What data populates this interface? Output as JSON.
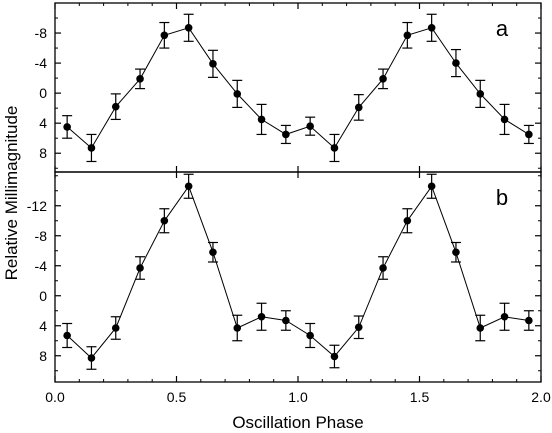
{
  "chart_data": {
    "type": "scatter",
    "xlabel": "Oscillation Phase",
    "ylabel": "Relative Millimagnitude",
    "xlim": [
      0.0,
      2.0
    ],
    "xticks": [
      "0.0",
      "0.5",
      "1.0",
      "1.5",
      "2.0"
    ],
    "x": [
      0.05,
      0.15,
      0.25,
      0.35,
      0.45,
      0.55,
      0.65,
      0.75,
      0.85,
      0.95,
      1.05,
      1.15,
      1.25,
      1.35,
      1.45,
      1.55,
      1.65,
      1.75,
      1.85,
      1.95
    ],
    "y_inverted": true,
    "connected": true,
    "grid": false,
    "panels": [
      {
        "label": "a",
        "ylim": [
          10.5,
          -12
        ],
        "yticks": [
          "-8",
          "-4",
          "0",
          "4",
          "8"
        ],
        "ytick_values": [
          -8,
          -4,
          0,
          4,
          8
        ],
        "y": [
          4.5,
          7.3,
          1.8,
          -1.9,
          -7.7,
          -8.7,
          -3.9,
          0.1,
          3.5,
          5.5,
          4.4,
          7.3,
          1.9,
          -1.9,
          -7.7,
          -8.7,
          -4.0,
          0.1,
          3.5,
          5.5
        ],
        "err": [
          1.5,
          1.8,
          1.7,
          1.3,
          1.7,
          1.8,
          1.8,
          1.8,
          2.0,
          1.2,
          1.2,
          1.8,
          1.7,
          1.3,
          1.7,
          1.8,
          1.8,
          1.8,
          2.0,
          1.2
        ]
      },
      {
        "label": "b",
        "ylim": [
          11.5,
          -16.5
        ],
        "yticks": [
          "-12",
          "-8",
          "-4",
          "0",
          "4",
          "8"
        ],
        "ytick_values": [
          -12,
          -8,
          -4,
          0,
          4,
          8
        ],
        "y": [
          5.3,
          8.3,
          4.3,
          -3.7,
          -10.0,
          -14.6,
          -5.8,
          4.3,
          2.8,
          3.3,
          5.3,
          8.1,
          4.2,
          -3.7,
          -10.0,
          -14.6,
          -5.8,
          4.3,
          2.8,
          3.3
        ],
        "err": [
          1.6,
          1.5,
          1.5,
          1.5,
          1.6,
          1.6,
          1.3,
          1.7,
          1.8,
          1.3,
          1.6,
          1.5,
          1.5,
          1.5,
          1.6,
          1.6,
          1.3,
          1.7,
          1.8,
          1.3
        ]
      }
    ]
  }
}
